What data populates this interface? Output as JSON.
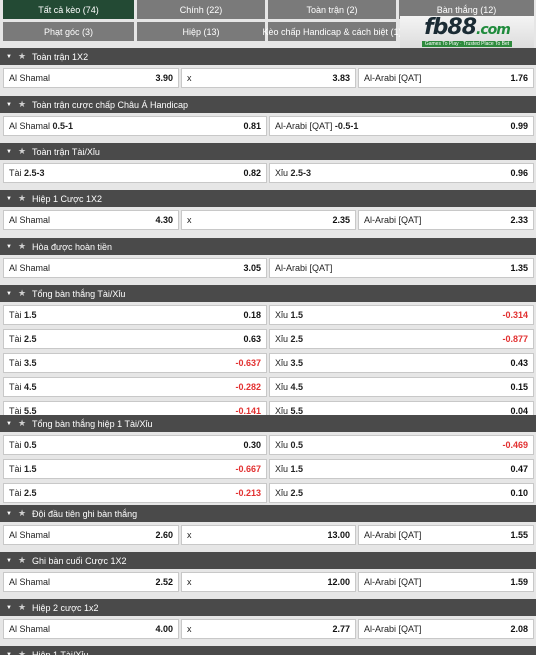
{
  "tabs": [
    {
      "label": "Tất cả kèo (74)",
      "active": true
    },
    {
      "label": "Chính (22)"
    },
    {
      "label": "Toàn trận (2)"
    },
    {
      "label": "Bàn thắng (12)"
    },
    {
      "label": "Phạt góc (3)"
    },
    {
      "label": "Hiệp (13)"
    },
    {
      "label": "Kèo chấp Handicap & cách biệt (1)"
    }
  ],
  "logo": {
    "text_main": "fb88",
    "text_suffix": ".com",
    "tagline": "Games To Play · Trusted Place To Bet"
  },
  "markets": [
    {
      "title": "Toàn trận 1X2",
      "rows": [
        [
          {
            "label": "Al Shamal",
            "odd": "3.90"
          },
          {
            "label": "x",
            "odd": "3.83"
          },
          {
            "label": "Al-Arabi [QAT]",
            "odd": "1.76"
          }
        ]
      ]
    },
    {
      "title": "Toàn trận cược chấp Châu Á Handicap",
      "rows": [
        [
          {
            "label": "Al Shamal",
            "line": "0.5-1",
            "odd": "0.81"
          },
          {
            "label": "Al-Arabi [QAT]",
            "line": "-0.5-1",
            "odd": "0.99"
          }
        ]
      ]
    },
    {
      "title": "Toàn trận Tài/Xỉu",
      "rows": [
        [
          {
            "label": "Tài",
            "line": "2.5-3",
            "odd": "0.82"
          },
          {
            "label": "Xỉu",
            "line": "2.5-3",
            "odd": "0.96"
          }
        ]
      ]
    },
    {
      "title": "Hiệp 1 Cược 1X2",
      "rows": [
        [
          {
            "label": "Al Shamal",
            "odd": "4.30"
          },
          {
            "label": "x",
            "odd": "2.35"
          },
          {
            "label": "Al-Arabi [QAT]",
            "odd": "2.33"
          }
        ]
      ]
    },
    {
      "title": "Hòa được hoàn tiền",
      "rows": [
        [
          {
            "label": "Al Shamal",
            "odd": "3.05"
          },
          {
            "label": "Al-Arabi [QAT]",
            "odd": "1.35"
          }
        ]
      ]
    },
    {
      "title": "Tổng bàn thắng Tài/Xỉu",
      "rows": [
        [
          {
            "label": "Tài",
            "line": "1.5",
            "odd": "0.18"
          },
          {
            "label": "Xỉu",
            "line": "1.5",
            "odd": "-0.314"
          }
        ],
        [
          {
            "label": "Tài",
            "line": "2.5",
            "odd": "0.63"
          },
          {
            "label": "Xỉu",
            "line": "2.5",
            "odd": "-0.877"
          }
        ],
        [
          {
            "label": "Tài",
            "line": "3.5",
            "odd": "-0.637"
          },
          {
            "label": "Xỉu",
            "line": "3.5",
            "odd": "0.43"
          }
        ],
        [
          {
            "label": "Tài",
            "line": "4.5",
            "odd": "-0.282"
          },
          {
            "label": "Xỉu",
            "line": "4.5",
            "odd": "0.15"
          }
        ],
        [
          {
            "label": "Tài",
            "line": "5.5",
            "odd": "-0.141"
          },
          {
            "label": "Xỉu",
            "line": "5.5",
            "odd": "0.04"
          }
        ]
      ]
    },
    {
      "title": "Tổng bàn thắng hiệp 1 Tài/Xỉu",
      "rows": [
        [
          {
            "label": "Tài",
            "line": "0.5",
            "odd": "0.30"
          },
          {
            "label": "Xỉu",
            "line": "0.5",
            "odd": "-0.469"
          }
        ],
        [
          {
            "label": "Tài",
            "line": "1.5",
            "odd": "-0.667"
          },
          {
            "label": "Xỉu",
            "line": "1.5",
            "odd": "0.47"
          }
        ],
        [
          {
            "label": "Tài",
            "line": "2.5",
            "odd": "-0.213"
          },
          {
            "label": "Xỉu",
            "line": "2.5",
            "odd": "0.10"
          }
        ]
      ]
    },
    {
      "title": "Đội đầu tiên ghi bàn thắng",
      "rows": [
        [
          {
            "label": "Al Shamal",
            "odd": "2.60"
          },
          {
            "label": "x",
            "odd": "13.00"
          },
          {
            "label": "Al-Arabi [QAT]",
            "odd": "1.55"
          }
        ]
      ]
    },
    {
      "title": "Ghi bàn cuối Cược 1X2",
      "rows": [
        [
          {
            "label": "Al Shamal",
            "odd": "2.52"
          },
          {
            "label": "x",
            "odd": "12.00"
          },
          {
            "label": "Al-Arabi [QAT]",
            "odd": "1.59"
          }
        ]
      ]
    },
    {
      "title": "Hiệp 2 cược 1x2",
      "rows": [
        [
          {
            "label": "Al Shamal",
            "odd": "4.00"
          },
          {
            "label": "x",
            "odd": "2.77"
          },
          {
            "label": "Al-Arabi [QAT]",
            "odd": "2.08"
          }
        ]
      ]
    },
    {
      "title": "Hiệp 1 Tài/Xỉu",
      "rows": []
    }
  ],
  "colors": {
    "active_tab": "#234a34",
    "tab": "#7a7a7a",
    "header": "#4a4a4a",
    "negative": "#e23030"
  }
}
